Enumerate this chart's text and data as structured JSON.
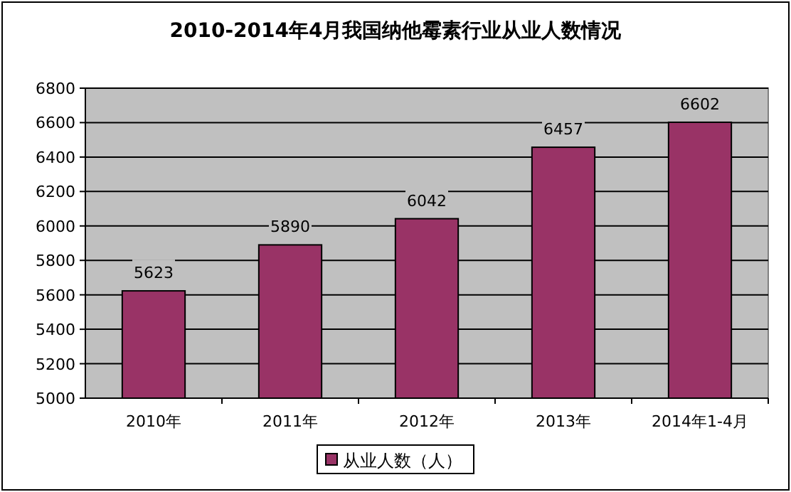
{
  "chart_data": {
    "type": "bar",
    "title": "2010-2014年4月我国纳他霉素行业从业人数情况",
    "categories": [
      "2010年",
      "2011年",
      "2012年",
      "2013年",
      "2014年1-4月"
    ],
    "series": [
      {
        "name": "从业人数（人）",
        "color": "#993366",
        "values": [
          5623,
          5890,
          6042,
          6457,
          6602
        ]
      }
    ],
    "ylim": [
      5000,
      6800
    ],
    "yticks": [
      5000,
      5200,
      5400,
      5600,
      5800,
      6000,
      6200,
      6400,
      6600,
      6800
    ],
    "grid": "y",
    "data_labels": true,
    "legend": "bottom"
  }
}
